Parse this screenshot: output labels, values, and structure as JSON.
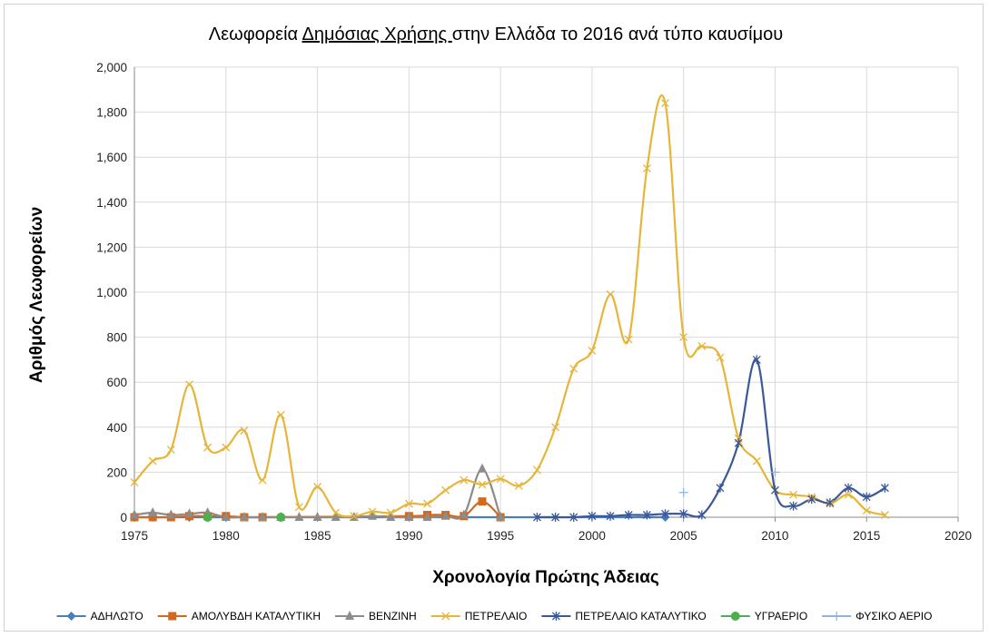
{
  "chart_data": {
    "type": "line",
    "title": "Λεωφορεία Δημόσιας Χρήσης στην Ελλάδα το 2016 ανά τύπο καυσίμου",
    "title_parts": [
      "Λεωφορεία ",
      "Δημόσιας Χρήσης ",
      "στην Ελλάδα το 2016 ανά τύπο καυσίμου"
    ],
    "xlabel": "Χρονολογία Πρώτης Άδειας",
    "ylabel": "Αριθμός  Λεωφορείων",
    "xlim": [
      1975,
      2020
    ],
    "ylim": [
      0,
      2000
    ],
    "xticks": [
      "1975",
      "1980",
      "1985",
      "1990",
      "1995",
      "2000",
      "2005",
      "2010",
      "2015",
      "2020"
    ],
    "yticks": [
      "0",
      "200",
      "400",
      "600",
      "800",
      "1,000",
      "1,200",
      "1,400",
      "1,600",
      "1,800",
      "2,000"
    ],
    "grid": true,
    "legend_position": "bottom",
    "series": [
      {
        "name": "ΑΔΗΛΩΤΟ",
        "color": "#4a7ebb",
        "marker": "diamond",
        "x": [
          1975,
          1976,
          1978,
          1979,
          1980,
          2004
        ],
        "y": [
          0,
          0,
          0,
          0,
          0,
          0
        ]
      },
      {
        "name": "ΑΜΟΛΥΒΔΗ ΚΑΤΑΛΥΤΙΚΗ",
        "color": "#d2691e",
        "marker": "square",
        "x": [
          1975,
          1976,
          1977,
          1978,
          1979,
          1980,
          1981,
          1982,
          1990,
          1991,
          1992,
          1993,
          1994,
          1995
        ],
        "y": [
          0,
          0,
          0,
          5,
          5,
          5,
          0,
          0,
          5,
          10,
          10,
          5,
          70,
          0
        ]
      },
      {
        "name": "ΒΕΝΖΙΝΗ",
        "color": "#8c8c8c",
        "marker": "triangle",
        "x": [
          1975,
          1976,
          1977,
          1978,
          1979,
          1980,
          1981,
          1982,
          1983,
          1984,
          1985,
          1986,
          1987,
          1988,
          1989,
          1990,
          1991,
          1992,
          1993,
          1994,
          1995
        ],
        "y": [
          10,
          20,
          10,
          15,
          20,
          0,
          0,
          0,
          0,
          0,
          0,
          0,
          0,
          5,
          0,
          0,
          0,
          5,
          10,
          215,
          0
        ]
      },
      {
        "name": "ΠΕΤΡΕΛΑΙΟ",
        "color": "#e6b53a",
        "marker": "x",
        "x": [
          1975,
          1976,
          1977,
          1978,
          1979,
          1980,
          1981,
          1982,
          1983,
          1984,
          1985,
          1986,
          1987,
          1988,
          1989,
          1990,
          1991,
          1992,
          1993,
          1994,
          1995,
          1996,
          1997,
          1998,
          1999,
          2000,
          2001,
          2002,
          2003,
          2004,
          2005,
          2006,
          2007,
          2008,
          2009,
          2010,
          2011,
          2012,
          2013,
          2014,
          2015,
          2016
        ],
        "y": [
          155,
          250,
          300,
          590,
          310,
          310,
          385,
          165,
          455,
          45,
          135,
          20,
          5,
          25,
          20,
          60,
          60,
          120,
          165,
          145,
          170,
          140,
          210,
          400,
          660,
          740,
          990,
          790,
          1550,
          1840,
          800,
          760,
          710,
          350,
          250,
          120,
          100,
          90,
          60,
          100,
          30,
          10
        ]
      },
      {
        "name": "ΠΕΤΡΕΛΑΙΟ ΚΑΤΑΛΥΤΙΚΟ",
        "color": "#3b5998",
        "marker": "asterisk",
        "x": [
          1997,
          1998,
          1999,
          2000,
          2001,
          2002,
          2003,
          2004,
          2005,
          2006,
          2007,
          2008,
          2009,
          2010,
          2011,
          2012,
          2013,
          2014,
          2015,
          2016
        ],
        "y": [
          0,
          0,
          0,
          5,
          5,
          10,
          10,
          15,
          15,
          10,
          130,
          330,
          700,
          120,
          50,
          80,
          65,
          130,
          90,
          130
        ]
      },
      {
        "name": "ΥΓΡΑΕΡΙΟ",
        "color": "#4caf50",
        "marker": "circle",
        "x": [
          1979,
          1983
        ],
        "y": [
          0,
          0
        ]
      },
      {
        "name": "ΦΥΣΙΚΟ ΑΕΡΙΟ",
        "color": "#8fb4e3",
        "marker": "plus",
        "x": [
          2005,
          2010
        ],
        "y": [
          110,
          200
        ]
      }
    ]
  }
}
